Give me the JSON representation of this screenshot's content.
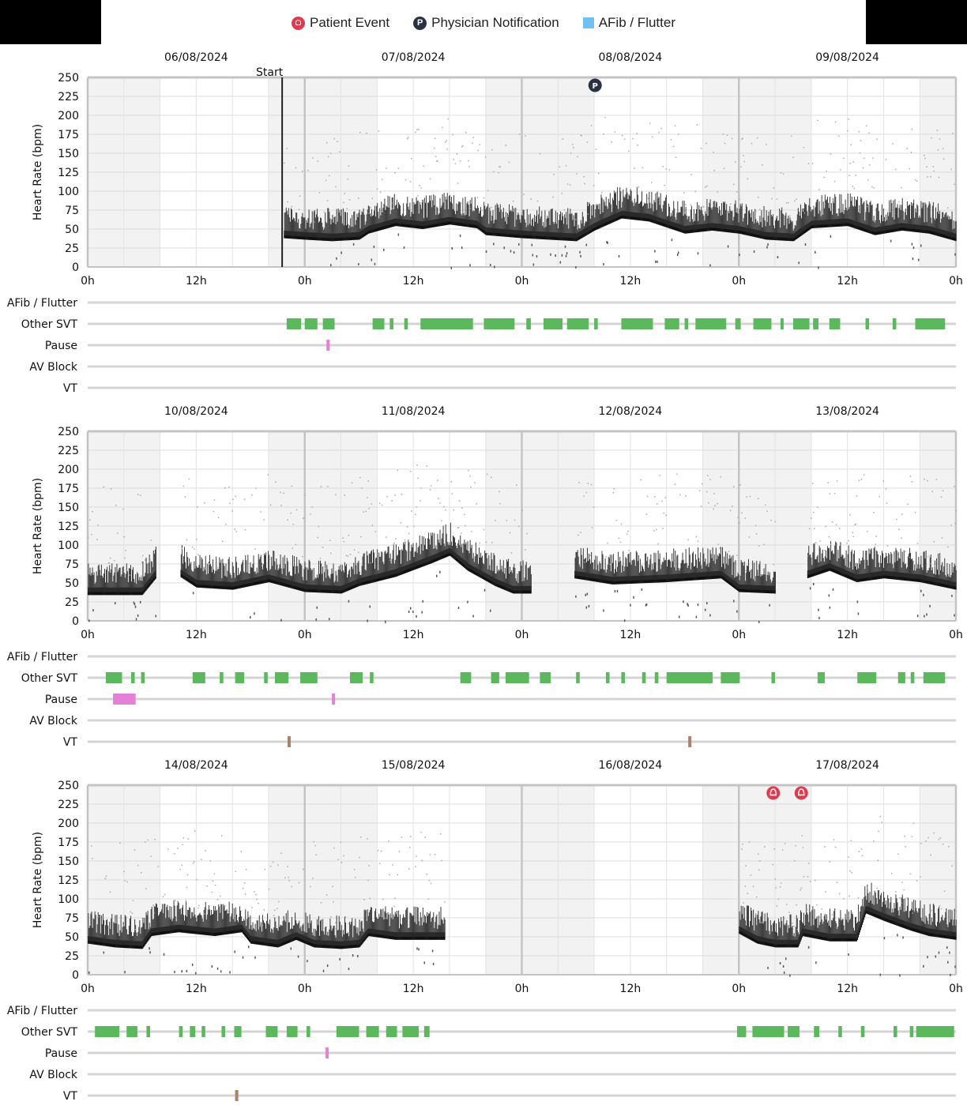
{
  "legend": {
    "patient_event": "Patient Event",
    "physician_notification": "Physician Notification",
    "afib_flutter": "AFib / Flutter"
  },
  "colors": {
    "other_svt": "#5cb85c",
    "pause": "#e57fd8",
    "vt": "#a9836e",
    "afib": "#6ec1f2",
    "patient_event": "#e03a4e",
    "physician_notification": "#2a3140",
    "night_shade": "#f2f2f2"
  },
  "chart_data": {
    "type": "scatter",
    "ylabel": "Heart Rate (bpm)",
    "y_ticks": [
      0,
      25,
      50,
      75,
      100,
      125,
      150,
      175,
      200,
      225,
      250
    ],
    "ylim": [
      0,
      250
    ],
    "x_tick_labels": [
      "0h",
      "12h",
      "0h",
      "12h",
      "0h",
      "12h",
      "0h",
      "12h",
      "0h"
    ],
    "start_label": "Start",
    "lane_labels": [
      "AFib / Flutter",
      "Other SVT",
      "Pause",
      "AV Block",
      "VT"
    ],
    "panels": [
      {
        "dates": [
          "06/08/2024",
          "07/08/2024",
          "08/08/2024",
          "09/08/2024"
        ],
        "start_hour": 21.5,
        "hr_baseline": [
          [
            0,
            null
          ],
          [
            21.5,
            null
          ],
          [
            21.6,
            42
          ],
          [
            24,
            40
          ],
          [
            27,
            38
          ],
          [
            30,
            40
          ],
          [
            31,
            48
          ],
          [
            34,
            58
          ],
          [
            37,
            54
          ],
          [
            40,
            60
          ],
          [
            43,
            55
          ],
          [
            44,
            46
          ],
          [
            48,
            42
          ],
          [
            54,
            38
          ],
          [
            56,
            52
          ],
          [
            59,
            68
          ],
          [
            62,
            64
          ],
          [
            66,
            48
          ],
          [
            69,
            52
          ],
          [
            72,
            48
          ],
          [
            75,
            40
          ],
          [
            78,
            38
          ],
          [
            80,
            55
          ],
          [
            84,
            58
          ],
          [
            87,
            46
          ],
          [
            90,
            52
          ],
          [
            93,
            48
          ],
          [
            96,
            38
          ]
        ],
        "physician_notification_hours": [
          56.1
        ],
        "patient_event_hours": [],
        "other_svt": [
          [
            22.0,
            23.6
          ],
          [
            24.0,
            25.4
          ],
          [
            26.0,
            27.3
          ],
          [
            31.5,
            32.8
          ],
          [
            33.4,
            33.8
          ],
          [
            35.0,
            35.4
          ],
          [
            36.8,
            42.6
          ],
          [
            43.8,
            47.2
          ],
          [
            48.5,
            49.0
          ],
          [
            50.4,
            52.5
          ],
          [
            53.0,
            55.4
          ],
          [
            56.0,
            56.4
          ],
          [
            59.0,
            62.5
          ],
          [
            63.8,
            65.4
          ],
          [
            66.0,
            66.4
          ],
          [
            67.2,
            70.6
          ],
          [
            71.6,
            72.2
          ],
          [
            73.6,
            75.6
          ],
          [
            76.6,
            76.9
          ],
          [
            78.0,
            79.8
          ],
          [
            80.2,
            80.8
          ],
          [
            82.0,
            83.2
          ],
          [
            86.0,
            86.4
          ],
          [
            89.0,
            89.4
          ],
          [
            91.5,
            94.8
          ]
        ],
        "pause": [
          [
            26.4,
            26.7
          ]
        ],
        "vt": [],
        "afib": [],
        "av_block": []
      },
      {
        "dates": [
          "10/08/2024",
          "11/08/2024",
          "12/08/2024",
          "13/08/2024"
        ],
        "start_hour": null,
        "hr_baseline": [
          [
            0,
            38
          ],
          [
            6,
            38
          ],
          [
            7.5,
            60
          ],
          [
            8.0,
            null
          ],
          [
            9.8,
            null
          ],
          [
            10.2,
            62
          ],
          [
            12,
            48
          ],
          [
            16,
            45
          ],
          [
            20,
            55
          ],
          [
            24,
            42
          ],
          [
            28,
            40
          ],
          [
            30,
            50
          ],
          [
            34,
            62
          ],
          [
            38,
            80
          ],
          [
            40,
            90
          ],
          [
            42,
            70
          ],
          [
            45,
            50
          ],
          [
            47,
            40
          ],
          [
            49,
            40
          ],
          [
            52.5,
            null
          ],
          [
            53.0,
            null
          ],
          [
            53.8,
            60
          ],
          [
            58,
            52
          ],
          [
            64,
            55
          ],
          [
            70,
            60
          ],
          [
            72,
            42
          ],
          [
            76,
            40
          ],
          [
            77,
            null
          ],
          [
            79,
            null
          ],
          [
            79.5,
            60
          ],
          [
            82,
            70
          ],
          [
            85,
            55
          ],
          [
            88,
            60
          ],
          [
            92,
            55
          ],
          [
            96,
            45
          ]
        ],
        "physician_notification_hours": [],
        "patient_event_hours": [],
        "other_svt": [
          [
            2.0,
            3.8
          ],
          [
            4.8,
            5.2
          ],
          [
            5.9,
            6.3
          ],
          [
            11.6,
            13.0
          ],
          [
            14.6,
            15.0
          ],
          [
            16.3,
            17.3
          ],
          [
            19.5,
            19.9
          ],
          [
            20.7,
            22.2
          ],
          [
            23.5,
            25.4
          ],
          [
            29.0,
            30.4
          ],
          [
            31.2,
            31.6
          ],
          [
            41.2,
            42.4
          ],
          [
            44.6,
            45.5
          ],
          [
            46.2,
            48.8
          ],
          [
            50.0,
            51.2
          ],
          [
            54.0,
            54.4
          ],
          [
            57.3,
            57.7
          ],
          [
            59.0,
            59.4
          ],
          [
            61.3,
            61.7
          ],
          [
            62.7,
            63.1
          ],
          [
            64.0,
            69.1
          ],
          [
            70.0,
            72.1
          ],
          [
            75.6,
            76.0
          ],
          [
            80.7,
            81.5
          ],
          [
            85.1,
            87.2
          ],
          [
            89.6,
            90.4
          ],
          [
            91.0,
            91.4
          ],
          [
            92.4,
            94.8
          ]
        ],
        "pause": [
          [
            2.8,
            5.3
          ],
          [
            27.0,
            27.3
          ]
        ],
        "vt": [
          [
            22.1,
            22.4
          ],
          [
            66.4,
            66.7
          ]
        ],
        "afib": [],
        "av_block": []
      },
      {
        "dates": [
          "14/08/2024",
          "15/08/2024",
          "16/08/2024",
          "17/08/2024"
        ],
        "start_hour": null,
        "hr_baseline": [
          [
            0,
            45
          ],
          [
            3,
            40
          ],
          [
            6,
            38
          ],
          [
            7,
            55
          ],
          [
            10,
            60
          ],
          [
            14,
            55
          ],
          [
            17,
            60
          ],
          [
            18,
            45
          ],
          [
            21,
            40
          ],
          [
            23,
            50
          ],
          [
            25,
            40
          ],
          [
            28,
            38
          ],
          [
            30,
            40
          ],
          [
            31,
            55
          ],
          [
            34,
            50
          ],
          [
            39.5,
            50
          ],
          [
            39.6,
            null
          ],
          [
            71.8,
            null
          ],
          [
            72,
            58
          ],
          [
            74,
            45
          ],
          [
            76,
            40
          ],
          [
            78.5,
            40
          ],
          [
            79,
            55
          ],
          [
            82,
            48
          ],
          [
            85,
            48
          ],
          [
            86,
            85
          ],
          [
            88,
            75
          ],
          [
            91,
            62
          ],
          [
            93,
            55
          ],
          [
            96,
            50
          ]
        ],
        "physician_notification_hours": [],
        "patient_event_hours": [
          75.8,
          78.9
        ],
        "other_svt": [
          [
            0.8,
            3.5
          ],
          [
            4.3,
            5.5
          ],
          [
            6.5,
            6.9
          ],
          [
            10.1,
            10.5
          ],
          [
            11.3,
            11.9
          ],
          [
            12.6,
            13.0
          ],
          [
            14.8,
            15.2
          ],
          [
            16.2,
            17.0
          ],
          [
            19.7,
            21.0
          ],
          [
            22.0,
            23.2
          ],
          [
            24.2,
            24.6
          ],
          [
            27.5,
            30.0
          ],
          [
            30.8,
            32.2
          ],
          [
            33.0,
            34.2
          ],
          [
            34.8,
            36.6
          ],
          [
            37.2,
            37.8
          ],
          [
            71.8,
            72.8
          ],
          [
            73.5,
            77.0
          ],
          [
            77.4,
            78.7
          ],
          [
            80.3,
            80.9
          ],
          [
            83.0,
            83.4
          ],
          [
            85.5,
            85.9
          ],
          [
            89.1,
            89.5
          ],
          [
            90.9,
            91.3
          ],
          [
            91.6,
            95.8
          ]
        ],
        "pause": [
          [
            26.3,
            26.6
          ]
        ],
        "vt": [
          [
            16.3,
            16.6
          ]
        ],
        "afib": [],
        "av_block": []
      }
    ]
  }
}
